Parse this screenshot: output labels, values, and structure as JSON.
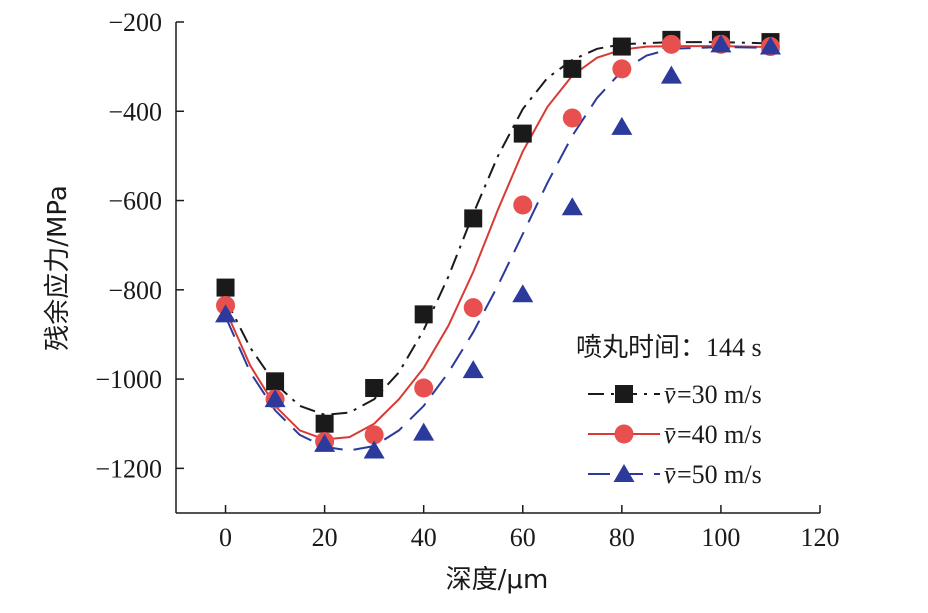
{
  "chart_data": {
    "type": "line",
    "xlabel": "深度/μm",
    "ylabel": "残余应力/MPa",
    "xlim": [
      -10,
      120
    ],
    "ylim": [
      -1300,
      -200
    ],
    "xticks": [
      0,
      20,
      40,
      60,
      80,
      100,
      120
    ],
    "xtick_labels": [
      "0",
      "20",
      "40",
      "60",
      "80",
      "100",
      "120"
    ],
    "yticks": [
      -200,
      -400,
      -600,
      -800,
      -1000,
      -1200
    ],
    "ytick_labels": [
      "−200",
      "−400",
      "−600",
      "−800",
      "−1000",
      "−1200"
    ],
    "grid": false,
    "legend": {
      "title": "喷丸时间：144 s",
      "position": "bottom-right",
      "symbol": "v̄"
    },
    "x": [
      0,
      10,
      20,
      30,
      40,
      50,
      60,
      70,
      80,
      90,
      100,
      110
    ],
    "series": [
      {
        "name": "=30 m/s",
        "marker": "square",
        "color": "#1a1a1a",
        "line_style": "dash-dot",
        "values": [
          -795,
          -1005,
          -1100,
          -1020,
          -855,
          -640,
          -450,
          -305,
          -255,
          -240,
          -240,
          -245
        ],
        "fit": [
          [
            0,
            -820
          ],
          [
            5,
            -930
          ],
          [
            10,
            -1010
          ],
          [
            15,
            -1060
          ],
          [
            20,
            -1080
          ],
          [
            25,
            -1075
          ],
          [
            30,
            -1045
          ],
          [
            35,
            -985
          ],
          [
            40,
            -890
          ],
          [
            45,
            -770
          ],
          [
            50,
            -630
          ],
          [
            55,
            -500
          ],
          [
            60,
            -395
          ],
          [
            65,
            -325
          ],
          [
            70,
            -285
          ],
          [
            75,
            -260
          ],
          [
            80,
            -250
          ],
          [
            90,
            -245
          ],
          [
            100,
            -245
          ],
          [
            110,
            -248
          ]
        ]
      },
      {
        "name": "=40 m/s",
        "marker": "circle",
        "color": "#e8504f",
        "line_color": "#d83a35",
        "line_style": "solid",
        "values": [
          -835,
          -1045,
          -1140,
          -1125,
          -1020,
          -840,
          -610,
          -415,
          -305,
          -250,
          -250,
          -255
        ],
        "fit": [
          [
            0,
            -845
          ],
          [
            5,
            -970
          ],
          [
            10,
            -1060
          ],
          [
            15,
            -1115
          ],
          [
            20,
            -1135
          ],
          [
            25,
            -1130
          ],
          [
            30,
            -1100
          ],
          [
            35,
            -1045
          ],
          [
            40,
            -975
          ],
          [
            45,
            -880
          ],
          [
            50,
            -760
          ],
          [
            55,
            -620
          ],
          [
            60,
            -490
          ],
          [
            65,
            -390
          ],
          [
            70,
            -320
          ],
          [
            75,
            -280
          ],
          [
            80,
            -262
          ],
          [
            85,
            -255
          ],
          [
            90,
            -254
          ],
          [
            100,
            -254
          ],
          [
            110,
            -256
          ]
        ]
      },
      {
        "name": "=50 m/s",
        "marker": "triangle",
        "color": "#2b3a9b",
        "line_style": "dashed",
        "values": [
          -855,
          -1045,
          -1145,
          -1160,
          -1120,
          -980,
          -810,
          -615,
          -435,
          -320,
          -250,
          -255
        ],
        "fit": [
          [
            0,
            -860
          ],
          [
            5,
            -985
          ],
          [
            10,
            -1070
          ],
          [
            15,
            -1125
          ],
          [
            20,
            -1152
          ],
          [
            25,
            -1160
          ],
          [
            30,
            -1150
          ],
          [
            35,
            -1115
          ],
          [
            40,
            -1060
          ],
          [
            45,
            -985
          ],
          [
            50,
            -895
          ],
          [
            55,
            -790
          ],
          [
            60,
            -675
          ],
          [
            65,
            -560
          ],
          [
            70,
            -455
          ],
          [
            75,
            -370
          ],
          [
            80,
            -310
          ],
          [
            85,
            -275
          ],
          [
            90,
            -260
          ],
          [
            100,
            -256
          ],
          [
            110,
            -258
          ]
        ]
      }
    ]
  }
}
